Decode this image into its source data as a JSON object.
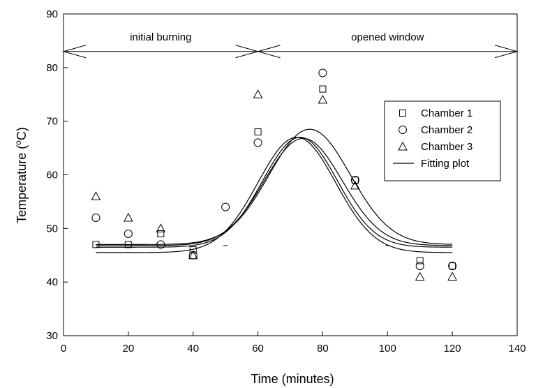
{
  "chart_data": {
    "type": "scatter",
    "title": "",
    "xlabel": "Time (minutes)",
    "ylabel": "Temperature (",
    "ylabel_sup": "o",
    "ylabel_tail": "C)",
    "xlim": [
      0,
      140
    ],
    "ylim": [
      30,
      90
    ],
    "xticks": [
      0,
      20,
      40,
      60,
      80,
      100,
      120,
      140
    ],
    "yticks": [
      30,
      40,
      50,
      60,
      70,
      80,
      90
    ],
    "grid": false,
    "legend_position": "right",
    "annotations": [
      {
        "text": "initial burning",
        "x_from": 0,
        "x_to": 60,
        "y": 83
      },
      {
        "text": "opened window",
        "x_from": 60,
        "x_to": 140,
        "y": 83
      }
    ],
    "series": [
      {
        "name": "Chamber 1",
        "marker": "square",
        "x": [
          10,
          20,
          30,
          40,
          60,
          80,
          90,
          110,
          120
        ],
        "y": [
          47,
          47,
          49,
          46,
          68,
          76,
          59,
          44,
          43
        ]
      },
      {
        "name": "Chamber 2",
        "marker": "circle",
        "x": [
          10,
          20,
          30,
          40,
          50,
          60,
          80,
          90,
          110,
          120
        ],
        "y": [
          52,
          49,
          47,
          45,
          54,
          66,
          79,
          59,
          43,
          43
        ]
      },
      {
        "name": "Chamber 3",
        "marker": "triangle",
        "x": [
          10,
          20,
          30,
          40,
          60,
          80,
          90,
          110,
          120
        ],
        "y": [
          56,
          52,
          50,
          45,
          75,
          74,
          58,
          41,
          41
        ]
      },
      {
        "name": "Fitting plot",
        "marker": "line",
        "curves": [
          {
            "base": 46.5,
            "amp": 20.5,
            "center": 73,
            "width": 11.5
          },
          {
            "base": 47.0,
            "amp": 21.5,
            "center": 76,
            "width": 12.5
          },
          {
            "base": 45.5,
            "amp": 21.5,
            "center": 72,
            "width": 12.0
          },
          {
            "base": 46.8,
            "amp": 20.0,
            "center": 74,
            "width": 12.0
          }
        ],
        "x_range": [
          10,
          120
        ]
      }
    ],
    "stray_marks": [
      {
        "x": 50,
        "y": 46.8
      },
      {
        "x": 100,
        "y": 46.8
      }
    ]
  }
}
